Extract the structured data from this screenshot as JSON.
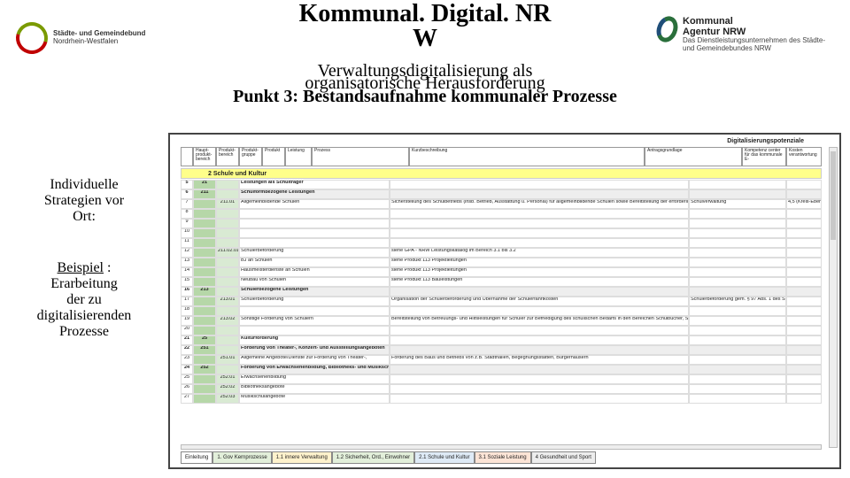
{
  "header": {
    "title_line1": "Kommunal. Digital. NR",
    "title_line2": "W",
    "subtitle1": "Verwaltungsdigitalisierung als",
    "subtitle2_overlay": "organisatorische Herausforderung",
    "punkt": "Punkt 3: Bestandsaufnahme kommunaler Prozesse",
    "logo_left_line1": "Städte- und Gemeindebund",
    "logo_left_line2": "Nordrhein-Westfalen",
    "logo_right_brand1": "Kommunal",
    "logo_right_brand2": "Agentur NRW",
    "logo_right_sub": "Das Dienstleistungsunternehmen des Städte- und Gemeindebundes NRW"
  },
  "sidebar": {
    "block1_l1": "Individuelle",
    "block1_l2": "Strategien vor",
    "block1_l3": "Ort:",
    "block2_l1": "Beispiel",
    "block2_l1b": " :",
    "block2_l2": "Erarbeitung",
    "block2_l3": "der zu",
    "block2_l4": "digitalisierenden",
    "block2_l5": "Prozesse"
  },
  "sheet": {
    "topright": "Digitalisierungspotenziale",
    "headers": [
      "Haupt-produkt-bereich",
      "Produkt-bereich",
      "Produkt-gruppe",
      "Produkt",
      "Leistung",
      "Prozess"
    ],
    "head_kurz": "Kurzbeschreibung",
    "head_antrag": "Antragsgrundlage",
    "head_komp": "Kompetenz center für das kommunale E-",
    "head_kosten": "Kosten verantwortung",
    "section": "2 Schule und Kultur",
    "rows": [
      {
        "num": "5",
        "code": "21",
        "desc": "Leistungen als Schulträger",
        "mid": "",
        "r1": "",
        "r2": "",
        "bold": true
      },
      {
        "num": "6",
        "code": "211",
        "desc": "Schulformbezogene Leistungen",
        "mid": "",
        "r1": "",
        "r2": "",
        "bold": true,
        "grey": true
      },
      {
        "num": "7",
        "code": "",
        "g2": "211.01",
        "desc": "Allgemeinbildende Schulen",
        "mid": "Sicherstellung des Schulbetriebs (insb. Betrieb, Ausstattung u. Personal) für allgemeinbildende Schulen sowie Bereitstellung der erforderlichen pädagogischen Infrastruktur (z.B. nach den Aufgabenfeldern des Schulgesetzes)",
        "r1": "Schulverwaltung",
        "r2": "4,5 (Kreis-Ebene)"
      },
      {
        "num": "8",
        "code": "",
        "g2": "",
        "desc": "",
        "mid": "",
        "r1": "",
        "r2": ""
      },
      {
        "num": "9",
        "code": "",
        "g2": "",
        "desc": "",
        "mid": "",
        "r1": "",
        "r2": ""
      },
      {
        "num": "10",
        "code": "",
        "g2": "",
        "desc": "",
        "mid": "",
        "r1": "",
        "r2": ""
      },
      {
        "num": "11",
        "code": "",
        "g2": "",
        "desc": "",
        "mid": "",
        "r1": "",
        "r2": ""
      },
      {
        "num": "12",
        "code": "",
        "g2": "211.02.01",
        "desc": "Schülerbeförderung",
        "mid": "siehe GPA - NRW Leistungskatalog im Bereich 3.1 bis 3.2",
        "r1": "",
        "r2": ""
      },
      {
        "num": "13",
        "code": "",
        "g2": "",
        "desc": "BJ an Schulen",
        "mid": "siehe Produkt 113 Projektleitungen",
        "r1": "",
        "r2": ""
      },
      {
        "num": "14",
        "code": "",
        "g2": "",
        "desc": "Hausmeisterdienste an Schulen",
        "mid": "siehe Produkt 113 Projektleitungen",
        "r1": "",
        "r2": ""
      },
      {
        "num": "15",
        "code": "",
        "g2": "",
        "desc": "Neubau von Schulen",
        "mid": "siehe Produkt 113 Bauleistungen",
        "r1": "",
        "r2": ""
      },
      {
        "num": "16",
        "code": "213",
        "desc": "Schülerbezogene Leistungen",
        "mid": "",
        "r1": "",
        "r2": "",
        "bold": true,
        "grey": true
      },
      {
        "num": "17",
        "code": "",
        "g2": "213.01",
        "desc": "Schülerbeförderung",
        "mid": "Organisation der Schülerbeförderung und Übernahme der Schülerfahrtkosten",
        "r1": "Schülerbeförderung gem. § 97 Abs. 1 des SchulG i.V.m. Beförderungs-VO",
        "r2": ""
      },
      {
        "num": "18",
        "code": "",
        "g2": "",
        "desc": "",
        "mid": "",
        "r1": "",
        "r2": ""
      },
      {
        "num": "19",
        "code": "",
        "g2": "213.02",
        "desc": "Sonstige Förderung von Schülern",
        "mid": "Bereitstellung von Betreuungs- und Hilfsleistungen für Schüler zur Befriedigung des schulischen Bedarfs in den Bereichen Schulbücher, Schulspeisung, pädagogische Beratung",
        "r1": "",
        "r2": ""
      },
      {
        "num": "20",
        "code": "",
        "g2": "",
        "desc": "",
        "mid": "",
        "r1": "",
        "r2": ""
      },
      {
        "num": "21",
        "code": "25",
        "desc": "Kulturförderung",
        "mid": "",
        "r1": "",
        "r2": "",
        "bold": true
      },
      {
        "num": "22",
        "code": "251",
        "desc": "Förderung von Theater-, Konzert- und Ausstellungsangeboten",
        "mid": "",
        "r1": "",
        "r2": "",
        "bold": true,
        "grey": true
      },
      {
        "num": "23",
        "code": "",
        "g2": "251.01",
        "desc": "Allgemeine Angebote/Dienste zur Förderung von Theater-,",
        "mid": "Förderung des Baus und Betriebs von z.B. Stadthallen, Begegnungsstätten, Bürgerhäusern",
        "r1": "",
        "r2": ""
      },
      {
        "num": "24",
        "code": "252",
        "desc": "Förderung von Erwachsenenbildung, Bibliotheks- und Musikschulangeboten",
        "mid": "",
        "r1": "",
        "r2": "",
        "bold": true,
        "grey": true
      },
      {
        "num": "25",
        "code": "",
        "g2": "252.01",
        "desc": "Erwachsenenbildung",
        "mid": "",
        "r1": "",
        "r2": ""
      },
      {
        "num": "26",
        "code": "",
        "g2": "252.02",
        "desc": "Bibliotheksangebote",
        "mid": "",
        "r1": "",
        "r2": ""
      },
      {
        "num": "27",
        "code": "",
        "g2": "252.03",
        "desc": "Musikschulangebote",
        "mid": "",
        "r1": "",
        "r2": ""
      }
    ],
    "tabs": [
      {
        "label": "Einleitung",
        "color": "#ffffff"
      },
      {
        "label": "1. Gov Kernprozesse",
        "color": "#e2efda"
      },
      {
        "label": "1.1 innere Verwaltung",
        "color": "#fff2cc"
      },
      {
        "label": "1.2 Sicherheit, Ord., Einwohner",
        "color": "#e2efda"
      },
      {
        "label": "2.1 Schule und Kultur",
        "color": "#deeaf6"
      },
      {
        "label": "3.1 Soziale Leistung",
        "color": "#fce4d6"
      },
      {
        "label": "4 Gesundheit und Sport",
        "color": "#ededed"
      }
    ]
  },
  "colors": {
    "red": "#c00000",
    "green": "#7a9a01",
    "darkgreen": "#2a6f3b",
    "blue": "#1f4e79",
    "yellow": "#ffff8a",
    "lightgreen": "#b6d7a8",
    "lightgreen2": "#d9ead3"
  }
}
